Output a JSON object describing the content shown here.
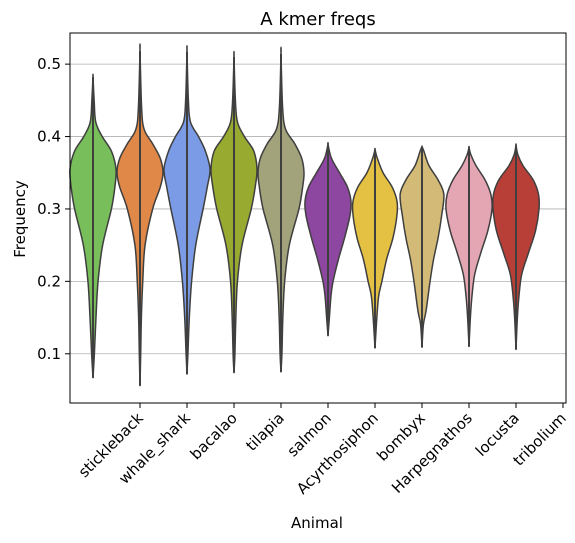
{
  "chart_data": {
    "type": "violin",
    "title": "A kmer freqs",
    "xlabel": "Animal",
    "ylabel": "Frequency",
    "ylim": [
      0.032,
      0.543
    ],
    "yticks": [
      0.1,
      0.2,
      0.3,
      0.4,
      0.5
    ],
    "ytick_labels": [
      "0.1",
      "0.2",
      "0.3",
      "0.4",
      "0.5"
    ],
    "grid": "horizontal",
    "categories": [
      "stickleback",
      "whale_shark",
      "bacalao",
      "tilapia",
      "salmon",
      "Acyrthosiphon",
      "bombyx",
      "Harpegnathos",
      "locusta",
      "tribolium"
    ],
    "series": [
      {
        "category": "stickleback",
        "color": "#78be5a",
        "min": 0.067,
        "max": 0.482,
        "shape": [
          [
            0.067,
            0.0
          ],
          [
            0.1,
            0.06
          ],
          [
            0.15,
            0.13
          ],
          [
            0.2,
            0.22
          ],
          [
            0.25,
            0.42
          ],
          [
            0.3,
            0.8
          ],
          [
            0.33,
            0.95
          ],
          [
            0.355,
            1.0
          ],
          [
            0.38,
            0.8
          ],
          [
            0.4,
            0.4
          ],
          [
            0.42,
            0.12
          ],
          [
            0.45,
            0.05
          ],
          [
            0.482,
            0.0
          ]
        ]
      },
      {
        "category": "whale_shark",
        "color": "#e08847",
        "min": 0.056,
        "max": 0.518,
        "shape": [
          [
            0.056,
            0.0
          ],
          [
            0.1,
            0.03
          ],
          [
            0.15,
            0.06
          ],
          [
            0.2,
            0.12
          ],
          [
            0.25,
            0.22
          ],
          [
            0.3,
            0.55
          ],
          [
            0.33,
            0.88
          ],
          [
            0.35,
            1.0
          ],
          [
            0.37,
            0.88
          ],
          [
            0.39,
            0.55
          ],
          [
            0.41,
            0.18
          ],
          [
            0.44,
            0.07
          ],
          [
            0.518,
            0.0
          ]
        ]
      },
      {
        "category": "bacalao",
        "color": "#7b9be6",
        "min": 0.072,
        "max": 0.517,
        "shape": [
          [
            0.072,
            0.0
          ],
          [
            0.1,
            0.04
          ],
          [
            0.15,
            0.1
          ],
          [
            0.2,
            0.2
          ],
          [
            0.25,
            0.38
          ],
          [
            0.3,
            0.7
          ],
          [
            0.33,
            0.88
          ],
          [
            0.355,
            1.0
          ],
          [
            0.38,
            0.8
          ],
          [
            0.4,
            0.5
          ],
          [
            0.42,
            0.15
          ],
          [
            0.45,
            0.06
          ],
          [
            0.517,
            0.0
          ]
        ]
      },
      {
        "category": "tilapia",
        "color": "#98aa30",
        "min": 0.074,
        "max": 0.51,
        "shape": [
          [
            0.074,
            0.0
          ],
          [
            0.1,
            0.04
          ],
          [
            0.15,
            0.08
          ],
          [
            0.2,
            0.15
          ],
          [
            0.25,
            0.35
          ],
          [
            0.3,
            0.75
          ],
          [
            0.33,
            0.92
          ],
          [
            0.355,
            1.0
          ],
          [
            0.38,
            0.86
          ],
          [
            0.4,
            0.45
          ],
          [
            0.42,
            0.15
          ],
          [
            0.45,
            0.06
          ],
          [
            0.51,
            0.0
          ]
        ]
      },
      {
        "category": "salmon",
        "color": "#a2a37a",
        "min": 0.075,
        "max": 0.514,
        "shape": [
          [
            0.075,
            0.0
          ],
          [
            0.1,
            0.04
          ],
          [
            0.15,
            0.08
          ],
          [
            0.2,
            0.16
          ],
          [
            0.25,
            0.36
          ],
          [
            0.3,
            0.78
          ],
          [
            0.33,
            0.94
          ],
          [
            0.35,
            1.0
          ],
          [
            0.37,
            0.9
          ],
          [
            0.39,
            0.6
          ],
          [
            0.41,
            0.2
          ],
          [
            0.44,
            0.07
          ],
          [
            0.514,
            0.0
          ]
        ]
      },
      {
        "category": "Acyrthosiphon",
        "color": "#8e47a1",
        "min": 0.125,
        "max": 0.389,
        "shape": [
          [
            0.125,
            0.0
          ],
          [
            0.15,
            0.06
          ],
          [
            0.18,
            0.13
          ],
          [
            0.2,
            0.22
          ],
          [
            0.23,
            0.45
          ],
          [
            0.26,
            0.72
          ],
          [
            0.29,
            0.95
          ],
          [
            0.31,
            1.0
          ],
          [
            0.33,
            0.85
          ],
          [
            0.35,
            0.5
          ],
          [
            0.37,
            0.15
          ],
          [
            0.389,
            0.0
          ]
        ]
      },
      {
        "category": "bombyx",
        "color": "#e5c143",
        "min": 0.108,
        "max": 0.382,
        "shape": [
          [
            0.108,
            0.0
          ],
          [
            0.15,
            0.08
          ],
          [
            0.18,
            0.16
          ],
          [
            0.2,
            0.3
          ],
          [
            0.23,
            0.5
          ],
          [
            0.26,
            0.78
          ],
          [
            0.29,
            0.95
          ],
          [
            0.31,
            0.96
          ],
          [
            0.33,
            0.75
          ],
          [
            0.35,
            0.35
          ],
          [
            0.37,
            0.1
          ],
          [
            0.382,
            0.0
          ]
        ]
      },
      {
        "category": "Harpegnathos",
        "color": "#d3bb77",
        "min": 0.109,
        "max": 0.386,
        "shape": [
          [
            0.109,
            0.0
          ],
          [
            0.14,
            0.06
          ],
          [
            0.16,
            0.18
          ],
          [
            0.2,
            0.35
          ],
          [
            0.23,
            0.5
          ],
          [
            0.26,
            0.7
          ],
          [
            0.29,
            0.85
          ],
          [
            0.32,
            0.95
          ],
          [
            0.34,
            0.7
          ],
          [
            0.36,
            0.3
          ],
          [
            0.38,
            0.08
          ],
          [
            0.386,
            0.0
          ]
        ]
      },
      {
        "category": "locusta",
        "color": "#e3a6b2",
        "min": 0.11,
        "max": 0.385,
        "shape": [
          [
            0.11,
            0.0
          ],
          [
            0.15,
            0.06
          ],
          [
            0.18,
            0.13
          ],
          [
            0.21,
            0.25
          ],
          [
            0.24,
            0.52
          ],
          [
            0.27,
            0.82
          ],
          [
            0.3,
            1.0
          ],
          [
            0.32,
            0.95
          ],
          [
            0.34,
            0.7
          ],
          [
            0.36,
            0.3
          ],
          [
            0.375,
            0.08
          ],
          [
            0.385,
            0.0
          ]
        ]
      },
      {
        "category": "tribolium",
        "color": "#b83e38",
        "min": 0.106,
        "max": 0.388,
        "shape": [
          [
            0.106,
            0.0
          ],
          [
            0.15,
            0.06
          ],
          [
            0.18,
            0.13
          ],
          [
            0.21,
            0.25
          ],
          [
            0.24,
            0.55
          ],
          [
            0.27,
            0.85
          ],
          [
            0.3,
            1.0
          ],
          [
            0.32,
            0.98
          ],
          [
            0.34,
            0.75
          ],
          [
            0.36,
            0.3
          ],
          [
            0.375,
            0.08
          ],
          [
            0.388,
            0.0
          ]
        ]
      }
    ]
  }
}
